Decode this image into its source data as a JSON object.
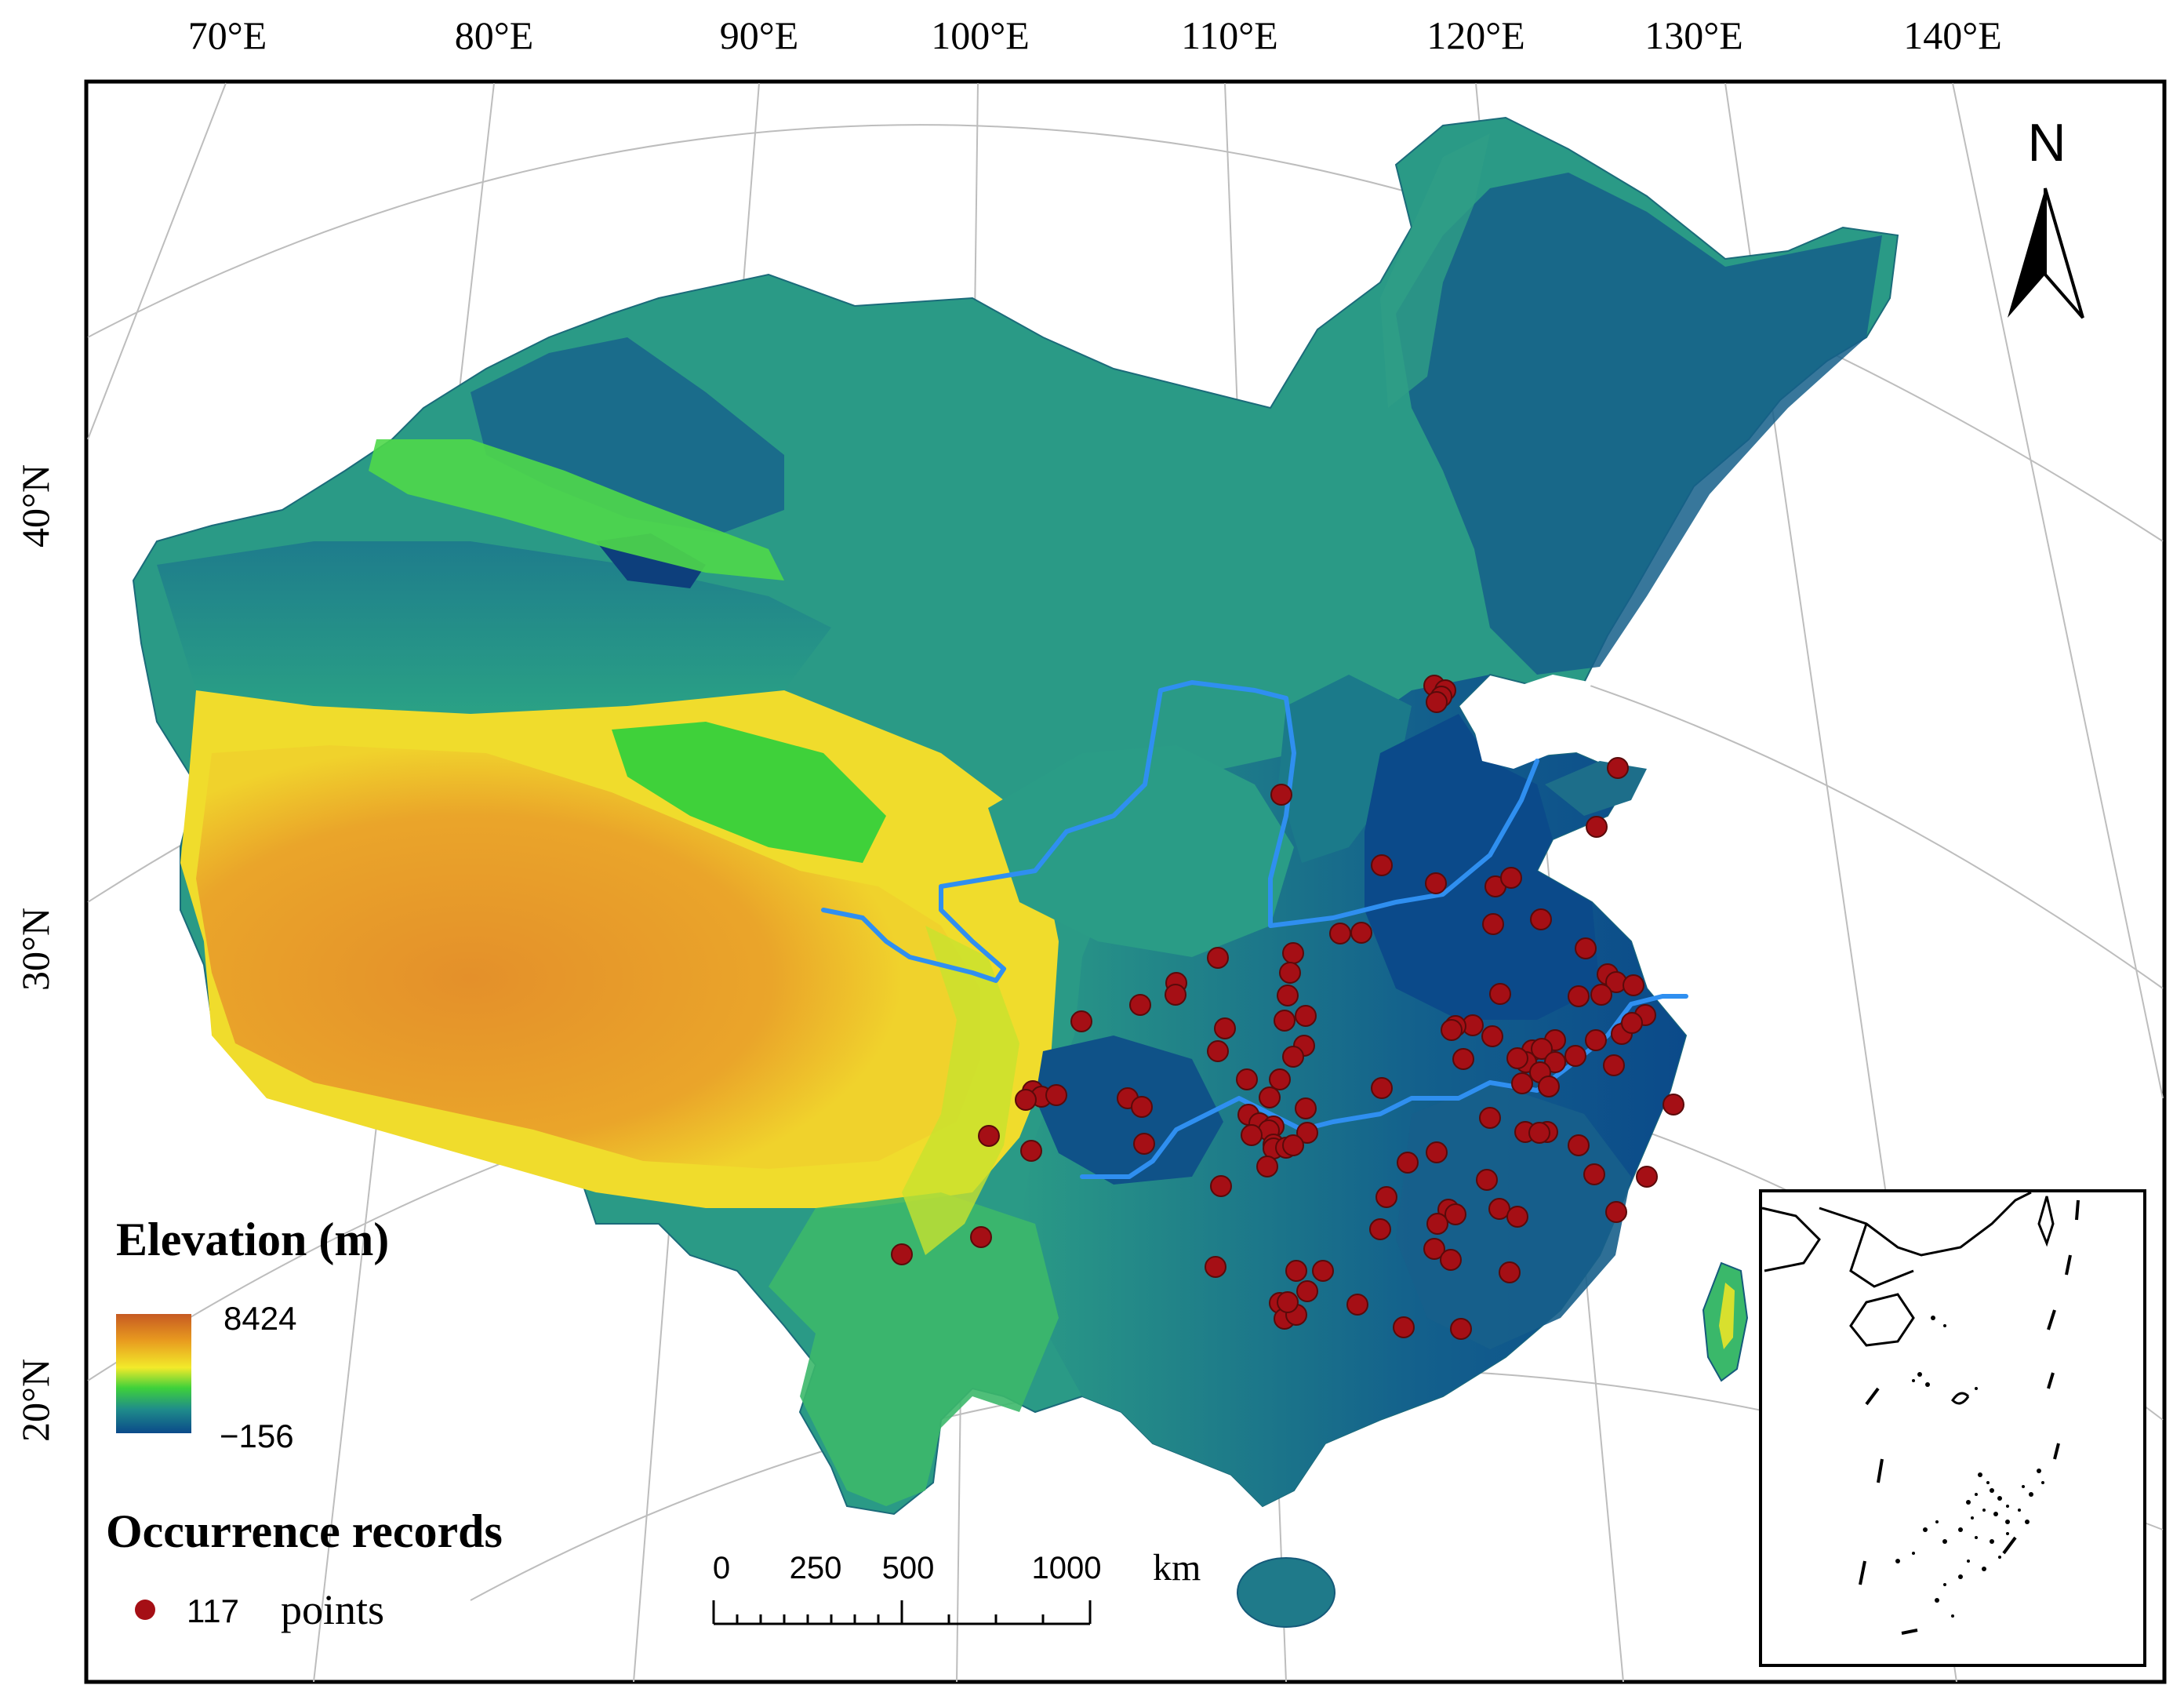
{
  "longitude_labels": [
    "70°E",
    "80°E",
    "90°E",
    "100°E",
    "110°E",
    "120°E",
    "130°E",
    "140°E"
  ],
  "latitude_labels": [
    "40°N",
    "30°N",
    "20°N"
  ],
  "north_arrow": {
    "label": "N",
    "icon": "north-arrow-icon"
  },
  "legend": {
    "elevation_title": "Elevation (m)",
    "elevation_max": "8424",
    "elevation_min": "−156",
    "occurrence_title": "Occurrence records",
    "points_count": "117",
    "points_label": "points",
    "point_color": "#a50f15"
  },
  "scale_bar": {
    "ticks": [
      "0",
      "250",
      "500",
      "1000"
    ],
    "unit": "km"
  },
  "colors": {
    "low": "#0b4a8a",
    "mid": "#2aa885",
    "green": "#3fd13a",
    "yellow": "#f2ea2a",
    "orange": "#e89a1f",
    "high": "#c65a22",
    "river": "#2f8ff0"
  },
  "occurrence_point_count": 117
}
